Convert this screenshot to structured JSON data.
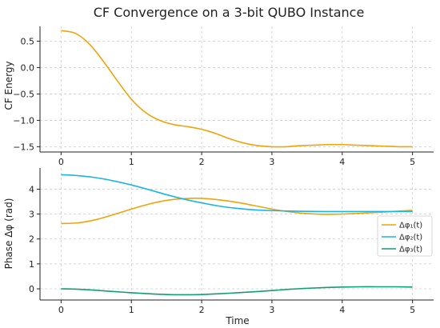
{
  "chart_data": [
    {
      "type": "line",
      "title": "CF Convergence on a 3-bit QUBO Instance",
      "xlabel": "",
      "ylabel": "CF Energy",
      "xlim": [
        -0.3,
        5.3
      ],
      "ylim": [
        -1.6,
        0.78
      ],
      "xticks": [
        0,
        1,
        2,
        3,
        4,
        5
      ],
      "yticks": [
        0.5,
        0.0,
        -0.5,
        -1.0,
        -1.5
      ],
      "ytick_labels": [
        "0.5",
        "0.0",
        "−0.5",
        "−1.0",
        "−1.5"
      ],
      "grid": true,
      "series": [
        {
          "color": "#f0a30a",
          "x": [
            0,
            0.2,
            0.4,
            0.6,
            0.8,
            1.0,
            1.2,
            1.4,
            1.6,
            1.8,
            2.0,
            2.2,
            2.4,
            2.6,
            2.8,
            3.0,
            3.2,
            3.4,
            3.6,
            3.8,
            4.0,
            4.2,
            4.4,
            4.6,
            4.8,
            5.0
          ],
          "y": [
            0.7,
            0.65,
            0.45,
            0.12,
            -0.25,
            -0.6,
            -0.85,
            -1.0,
            -1.08,
            -1.12,
            -1.17,
            -1.25,
            -1.35,
            -1.43,
            -1.48,
            -1.5,
            -1.5,
            -1.48,
            -1.47,
            -1.46,
            -1.46,
            -1.47,
            -1.48,
            -1.49,
            -1.5,
            -1.5
          ]
        }
      ]
    },
    {
      "type": "line",
      "title": "",
      "xlabel": "Time",
      "ylabel": "Phase Δφ (rad)",
      "xlim": [
        -0.3,
        5.3
      ],
      "ylim": [
        -0.45,
        4.85
      ],
      "xticks": [
        0,
        1,
        2,
        3,
        4,
        5
      ],
      "yticks": [
        0,
        1,
        2,
        3,
        4
      ],
      "ytick_labels": [
        "0",
        "1",
        "2",
        "3",
        "4"
      ],
      "grid": true,
      "legend": "right",
      "series": [
        {
          "name": "Δφ₁(t)",
          "color": "#f0a30a",
          "x": [
            0,
            0.25,
            0.5,
            0.75,
            1.0,
            1.25,
            1.5,
            1.75,
            2.0,
            2.25,
            2.5,
            2.75,
            3.0,
            3.25,
            3.5,
            3.75,
            4.0,
            4.25,
            4.5,
            4.75,
            5.0
          ],
          "y": [
            2.62,
            2.65,
            2.78,
            2.98,
            3.2,
            3.4,
            3.55,
            3.62,
            3.63,
            3.57,
            3.47,
            3.34,
            3.2,
            3.09,
            3.02,
            2.99,
            3.0,
            3.03,
            3.07,
            3.11,
            3.15
          ]
        },
        {
          "name": "Δφ₂(t)",
          "color": "#1bb5e3",
          "x": [
            0,
            0.25,
            0.5,
            0.75,
            1.0,
            1.25,
            1.5,
            1.75,
            2.0,
            2.25,
            2.5,
            2.75,
            3.0,
            3.25,
            3.5,
            3.75,
            4.0,
            4.25,
            4.5,
            4.75,
            5.0
          ],
          "y": [
            4.58,
            4.54,
            4.46,
            4.33,
            4.17,
            3.98,
            3.78,
            3.6,
            3.45,
            3.32,
            3.23,
            3.17,
            3.14,
            3.12,
            3.11,
            3.1,
            3.1,
            3.1,
            3.1,
            3.1,
            3.1
          ]
        },
        {
          "name": "Δφ₃(t)",
          "color": "#119e73",
          "x": [
            0,
            0.25,
            0.5,
            0.75,
            1.0,
            1.25,
            1.5,
            1.75,
            2.0,
            2.25,
            2.5,
            2.75,
            3.0,
            3.25,
            3.5,
            3.75,
            4.0,
            4.25,
            4.5,
            4.75,
            5.0
          ],
          "y": [
            0.0,
            -0.02,
            -0.06,
            -0.11,
            -0.16,
            -0.2,
            -0.23,
            -0.24,
            -0.23,
            -0.2,
            -0.16,
            -0.12,
            -0.07,
            -0.02,
            0.02,
            0.05,
            0.07,
            0.08,
            0.08,
            0.08,
            0.07
          ]
        }
      ]
    }
  ]
}
